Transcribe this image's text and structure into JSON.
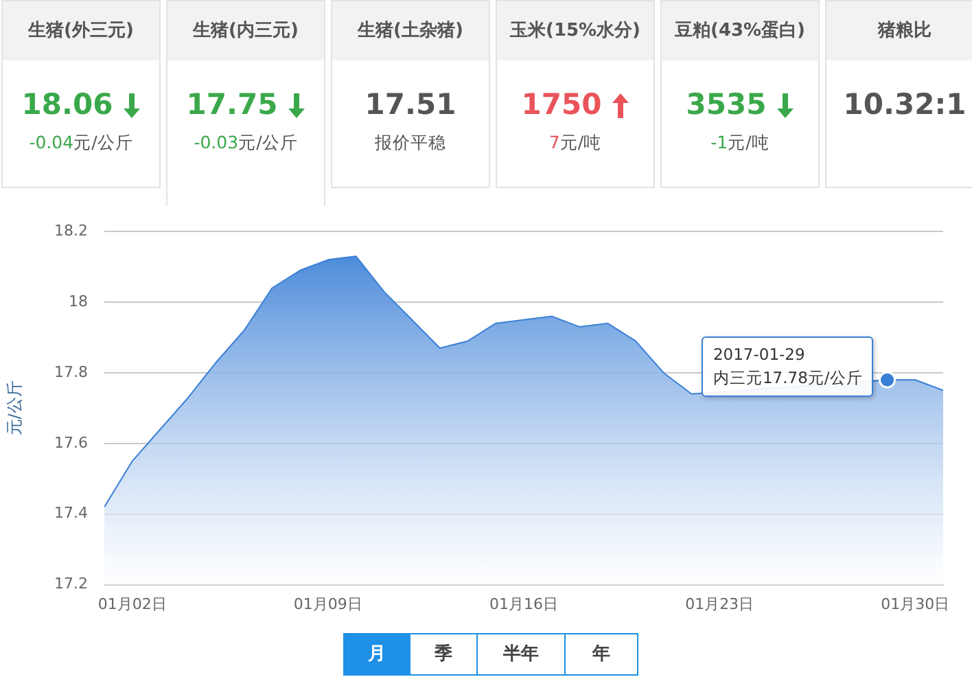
{
  "chart_data": [
    {
      "type": "other",
      "title": "生猪(外三元)",
      "annotations": [
        "18.06",
        "-0.04",
        "元/公斤"
      ],
      "color": "#3aa84a"
    },
    {
      "type": "other",
      "title": "生猪(内三元)",
      "annotations": [
        "17.75",
        "-0.03",
        "元/公斤"
      ],
      "color": "#3aa84a"
    },
    {
      "type": "other",
      "title": "生猪(土杂猪)",
      "annotations": [
        "17.51",
        null,
        "报价平稳"
      ],
      "color": "#555555"
    },
    {
      "type": "other",
      "title": "玉米(15%水分)",
      "annotations": [
        "1750",
        "7",
        "元/吨"
      ],
      "color": "#e9545b"
    },
    {
      "type": "other",
      "title": "豆粕(43%蛋白)",
      "annotations": [
        "3535",
        "-1",
        "元/吨"
      ],
      "color": "#3aa84a"
    },
    {
      "type": "other",
      "title": "猪粮比",
      "annotations": [
        "10.32:1"
      ],
      "color": "#555555"
    },
    {
      "type": "area",
      "ylabel": "元/公斤",
      "x": [
        "2017-01-01",
        "2017-01-02",
        "2017-01-03",
        "2017-01-04",
        "2017-01-05",
        "2017-01-06",
        "2017-01-07",
        "2017-01-08",
        "2017-01-09",
        "2017-01-10",
        "2017-01-11",
        "2017-01-12",
        "2017-01-13",
        "2017-01-14",
        "2017-01-15",
        "2017-01-16",
        "2017-01-17",
        "2017-01-18",
        "2017-01-19",
        "2017-01-20",
        "2017-01-21",
        "2017-01-22",
        "2017-01-23",
        "2017-01-24",
        "2017-01-25",
        "2017-01-26",
        "2017-01-27",
        "2017-01-28",
        "2017-01-29",
        "2017-01-30",
        "2017-01-31"
      ],
      "series": [
        {
          "color": "#3a7fd6",
          "values": [
            17.42,
            17.55,
            17.64,
            17.73,
            17.83,
            17.92,
            18.04,
            18.09,
            18.12,
            18.13,
            18.03,
            17.95,
            17.87,
            17.89,
            17.94,
            17.95,
            17.96,
            17.93,
            17.94,
            17.89,
            17.8,
            17.74,
            null,
            null,
            null,
            null,
            null,
            null,
            17.78,
            17.78,
            17.75
          ]
        }
      ],
      "xlim": [
        "2017-01-01",
        "2017-01-31"
      ],
      "xticks": [
        {
          "value": "2017-01-02",
          "label": "01月02日"
        },
        {
          "value": "2017-01-09",
          "label": "01月09日"
        },
        {
          "value": "2017-01-16",
          "label": "01月16日"
        },
        {
          "value": "2017-01-23",
          "label": "01月23日"
        },
        {
          "value": "2017-01-30",
          "label": "01月30日"
        }
      ],
      "ylim": [
        17.2,
        18.2
      ],
      "yticks": [
        17.2,
        17.4,
        17.6,
        17.8,
        18,
        18.2
      ],
      "grid": "y",
      "legend": false,
      "annotations": [
        {
          "text": "2017-01-29\n内三元17.78元/公斤",
          "x": "2017-01-29",
          "y": 17.78
        }
      ]
    },
    {
      "type": "other",
      "categories": [
        "月",
        "季",
        "半年",
        "年"
      ]
    }
  ]
}
